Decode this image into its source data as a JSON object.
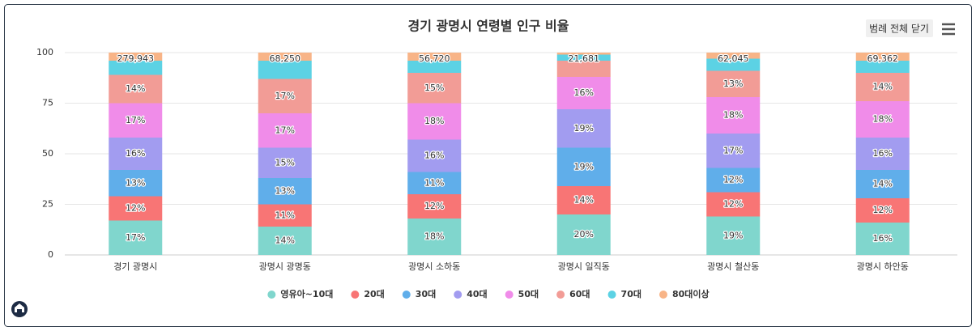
{
  "chart_data": {
    "type": "stacked-bar-percent",
    "title": "경기 광명시 연령별 인구 비율",
    "categories": [
      "경기 광명시",
      "광명시 광명동",
      "광명시 소하동",
      "광명시 일직동",
      "광명시 철산동",
      "광명시 하안동"
    ],
    "ylim": [
      0,
      100
    ],
    "yticks": [
      0,
      25,
      50,
      75,
      100
    ],
    "grid": true,
    "legend": "bottom",
    "totals": [
      279943,
      68250,
      56720,
      21681,
      62045,
      69362
    ],
    "total_labels": [
      "279,943",
      "68,250",
      "56,720",
      "21,681",
      "62,045",
      "69,362"
    ],
    "series": [
      {
        "name": "영유아~10대",
        "color": "#80d6cd",
        "values": [
          17,
          14,
          18,
          20,
          19,
          16
        ],
        "value_labels": [
          "17%",
          "14%",
          "18%",
          "20%",
          "19%",
          "16%"
        ]
      },
      {
        "name": "20대",
        "color": "#f87575",
        "values": [
          12,
          11,
          12,
          14,
          12,
          12
        ],
        "value_labels": [
          "12%",
          "11%",
          "12%",
          "14%",
          "12%",
          "12%"
        ]
      },
      {
        "name": "30대",
        "color": "#60aeea",
        "values": [
          13,
          13,
          11,
          19,
          12,
          14
        ],
        "value_labels": [
          "13%",
          "13%",
          "11%",
          "19%",
          "12%",
          "14%"
        ]
      },
      {
        "name": "40대",
        "color": "#a29cf0",
        "values": [
          16,
          15,
          16,
          19,
          17,
          16
        ],
        "value_labels": [
          "16%",
          "15%",
          "16%",
          "19%",
          "17%",
          "16%"
        ]
      },
      {
        "name": "50대",
        "color": "#f08ce9",
        "values": [
          17,
          17,
          18,
          16,
          18,
          18
        ],
        "value_labels": [
          "17%",
          "17%",
          "18%",
          "16%",
          "18%",
          "18%"
        ]
      },
      {
        "name": "60대",
        "color": "#f29c96",
        "values": [
          14,
          17,
          15,
          8,
          13,
          14
        ],
        "value_labels": [
          "14%",
          "17%",
          "15%",
          null,
          "13%",
          "14%"
        ]
      },
      {
        "name": "70대",
        "color": "#5cd2e4",
        "values": [
          7,
          9,
          6,
          3,
          6,
          6
        ],
        "value_labels": [
          null,
          null,
          null,
          null,
          null,
          null
        ]
      },
      {
        "name": "80대이상",
        "color": "#f8b487",
        "values": [
          4,
          4,
          4,
          1,
          3,
          4
        ],
        "value_labels": [
          null,
          null,
          null,
          null,
          null,
          null
        ]
      }
    ]
  },
  "ui": {
    "legend_toggle": "범례 전체 닫기"
  }
}
